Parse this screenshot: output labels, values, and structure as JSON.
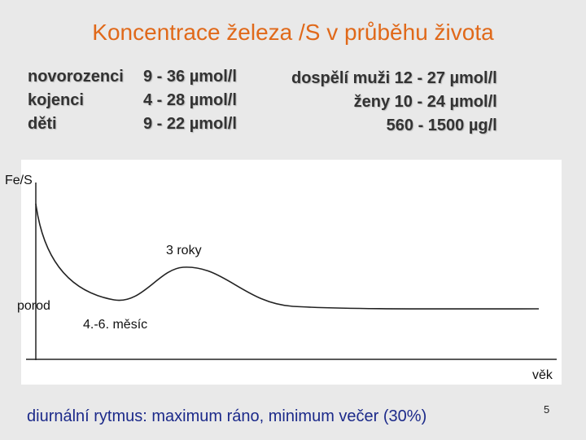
{
  "slide": {
    "title": "Koncentrace železa /S v průběhu života",
    "page_number": "5"
  },
  "norms": {
    "left": [
      {
        "label": "novorozenci",
        "value": "9 - 36 µmol/l"
      },
      {
        "label": "kojenci",
        "value": "4 - 28 µmol/l"
      },
      {
        "label": "děti",
        "value": "9 - 22 µmol/l"
      }
    ],
    "right": [
      "dospělí muži 12 - 27 µmol/l",
      "ženy 10 - 24 µmol/l",
      "560 - 1500 µg/l"
    ]
  },
  "graph": {
    "y_axis_label": "Fe/S",
    "x_axis_label": "věk",
    "annotations": {
      "birth": "porod",
      "minimum": "4.-6. měsíc",
      "peak": "3 roky"
    },
    "curve_color": "#222222",
    "background": "#ffffff"
  },
  "footer": {
    "text": "diurnální  rytmus: maximum ráno, minimum večer (30%)"
  },
  "colors": {
    "title": "#e0691a",
    "footer": "#1c2a8a",
    "slide_background": "#e9e9e9"
  }
}
